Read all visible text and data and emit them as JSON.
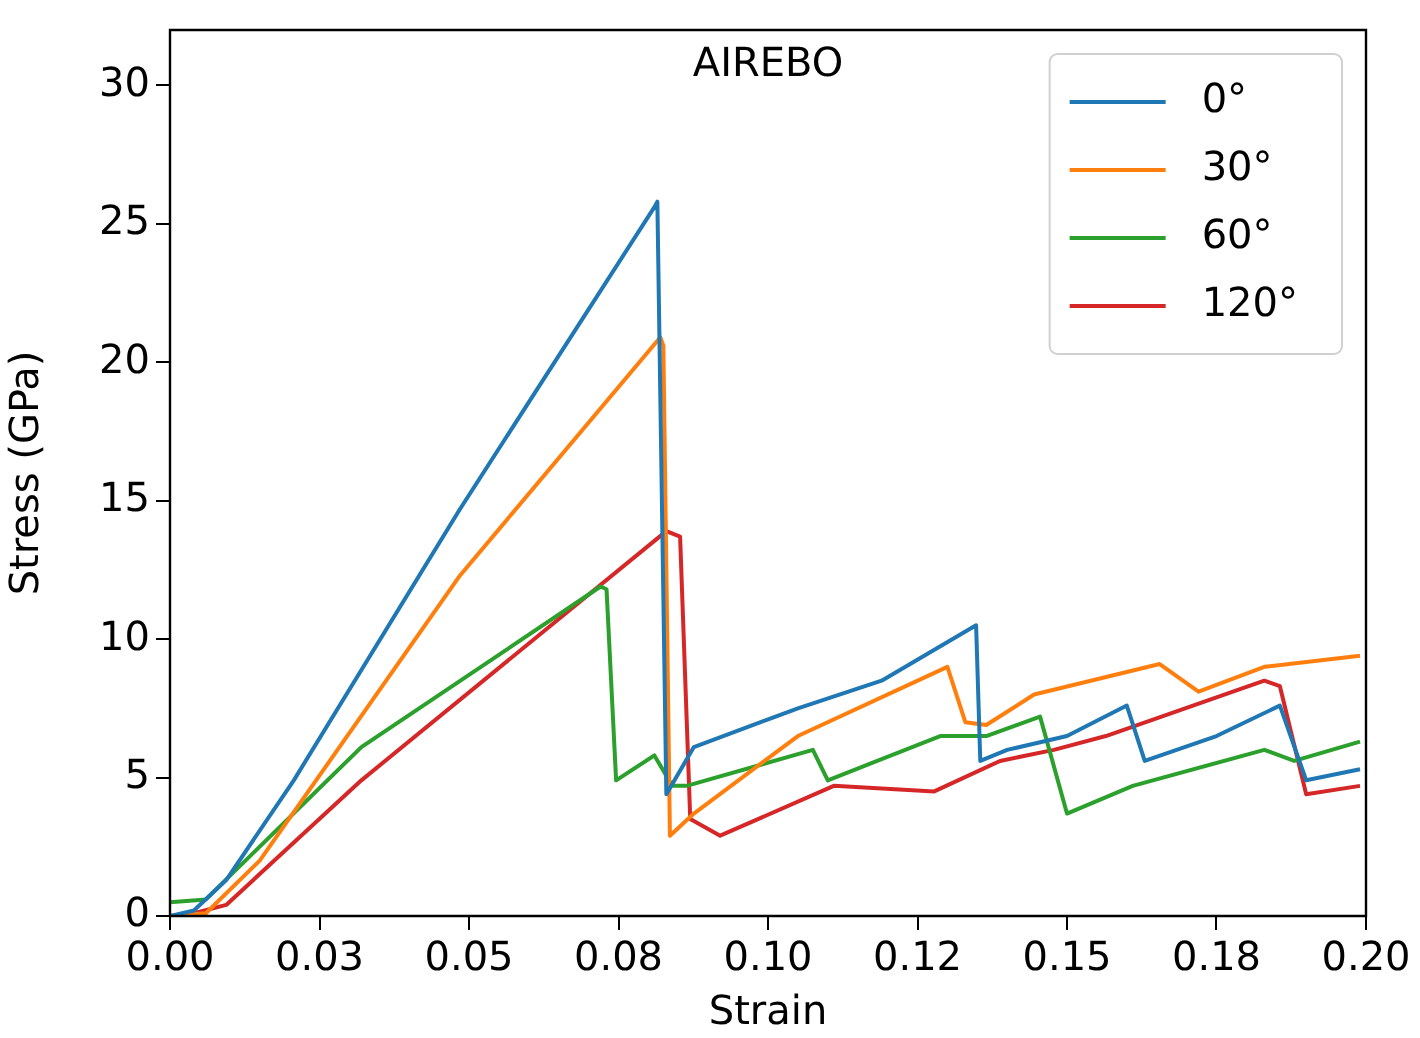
{
  "chart_data": {
    "type": "line",
    "title": "AIREBO",
    "xlabel": "Strain",
    "ylabel": "Stress (GPa)",
    "xlim": [
      0,
      0.2
    ],
    "xticks": [
      {
        "value": 0,
        "label": "0.00"
      },
      {
        "value": 0.025,
        "label": "0.03"
      },
      0.05,
      {
        "value": 0.075,
        "label": "0.08"
      },
      {
        "value": 0.1,
        "label": "0.10"
      },
      {
        "value": 0.125,
        "label": "0.12"
      },
      0.15,
      {
        "value": 0.175,
        "label": "0.18"
      },
      {
        "value": 0.2,
        "label": "0.20"
      }
    ],
    "ylim": [
      0,
      32
    ],
    "yticks": [
      0,
      5,
      10,
      15,
      20,
      25,
      30
    ],
    "grid": false,
    "legend": "top right",
    "marker": "none",
    "line_style": "solid",
    "series": [
      {
        "name": "0°",
        "color": "#1f77b4",
        "x": [
          0,
          0.004,
          0.0094,
          0.0207,
          0.0485,
          0.081,
          0.0815,
          0.083,
          0.0876,
          0.105,
          0.119,
          0.1348,
          0.1355,
          0.14,
          0.15,
          0.16,
          0.163,
          0.175,
          0.1856,
          0.19,
          0.199
        ],
        "values": [
          0,
          0.2,
          1.3,
          4.9,
          14.7,
          25.6,
          25.8,
          4.4,
          6.1,
          7.5,
          8.5,
          10.5,
          5.6,
          6.0,
          6.5,
          7.6,
          5.6,
          6.5,
          7.6,
          4.9,
          5.3
        ]
      },
      {
        "name": "30°",
        "color": "#ff7f0e",
        "x": [
          0,
          0.006,
          0.015,
          0.0485,
          0.082,
          0.0825,
          0.0836,
          0.0876,
          0.105,
          0.13,
          0.133,
          0.1365,
          0.1445,
          0.1655,
          0.172,
          0.183,
          0.199
        ],
        "values": [
          0,
          0.1,
          2.0,
          12.3,
          20.9,
          20.6,
          2.9,
          3.7,
          6.5,
          9.0,
          7.0,
          6.9,
          8.0,
          9.1,
          8.1,
          9.0,
          9.4
        ]
      },
      {
        "name": "60°",
        "color": "#2ca02c",
        "x": [
          0,
          0.006,
          0.032,
          0.072,
          0.073,
          0.0746,
          0.081,
          0.084,
          0.0864,
          0.1075,
          0.11,
          0.1288,
          0.1365,
          0.1455,
          0.15,
          0.161,
          0.183,
          0.188,
          0.199
        ],
        "values": [
          0.5,
          0.6,
          6.1,
          11.9,
          11.8,
          4.9,
          5.8,
          4.7,
          4.7,
          6.0,
          4.9,
          6.5,
          6.5,
          7.2,
          3.7,
          4.7,
          6.0,
          5.6,
          6.3
        ]
      },
      {
        "name": "120°",
        "color": "#d62728",
        "x": [
          0,
          0.004,
          0.0094,
          0.032,
          0.083,
          0.0853,
          0.087,
          0.092,
          0.111,
          0.1278,
          0.1388,
          0.1478,
          0.1565,
          0.183,
          0.1856,
          0.19,
          0.199
        ],
        "values": [
          0,
          0.1,
          0.4,
          4.9,
          13.9,
          13.7,
          3.5,
          2.9,
          4.7,
          4.5,
          5.6,
          6.0,
          6.5,
          8.5,
          8.3,
          4.4,
          4.7
        ]
      }
    ]
  }
}
